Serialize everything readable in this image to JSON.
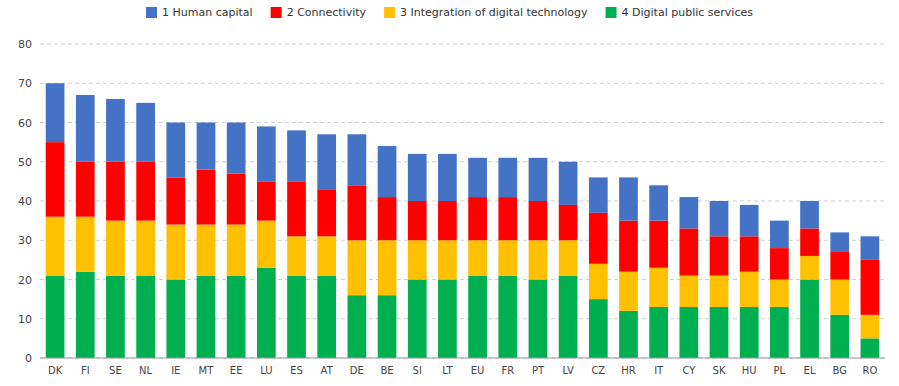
{
  "chart_data": {
    "type": "bar",
    "stacked": true,
    "categories": [
      "DK",
      "FI",
      "SE",
      "NL",
      "IE",
      "MT",
      "EE",
      "LU",
      "ES",
      "AT",
      "DE",
      "BE",
      "SI",
      "LT",
      "EU",
      "FR",
      "PT",
      "LV",
      "CZ",
      "HR",
      "IT",
      "CY",
      "SK",
      "HU",
      "PL",
      "EL",
      "BG",
      "RO"
    ],
    "series": [
      {
        "name": "4 Digital public services",
        "color": "#00b050",
        "values": [
          21,
          22,
          21,
          21,
          20,
          21,
          21,
          23,
          21,
          21,
          16,
          16,
          20,
          20,
          21,
          21,
          20,
          21,
          15,
          12,
          13,
          13,
          13,
          13,
          13,
          20,
          11,
          5
        ]
      },
      {
        "name": "3 Integration of digital technology",
        "color": "#ffc000",
        "values": [
          15,
          14,
          14,
          14,
          14,
          13,
          13,
          12,
          10,
          10,
          14,
          14,
          10,
          10,
          9,
          9,
          10,
          9,
          9,
          10,
          10,
          8,
          8,
          9,
          7,
          6,
          9,
          6
        ]
      },
      {
        "name": "2 Connectivity",
        "color": "#ff0000",
        "values": [
          19,
          14,
          15,
          15,
          12,
          14,
          13,
          10,
          14,
          12,
          14,
          11,
          10,
          10,
          11,
          11,
          10,
          9,
          13,
          13,
          12,
          12,
          10,
          9,
          8,
          7,
          7,
          14
        ]
      },
      {
        "name": "1 Human capital",
        "color": "#4472c4",
        "values": [
          15,
          17,
          16,
          15,
          14,
          12,
          13,
          14,
          13,
          14,
          13,
          13,
          12,
          12,
          10,
          10,
          11,
          11,
          9,
          11,
          9,
          8,
          9,
          8,
          7,
          7,
          5,
          6
        ]
      }
    ],
    "ylim": [
      0,
      80
    ],
    "yticks": [
      0,
      10,
      20,
      30,
      40,
      50,
      60,
      70,
      80
    ],
    "grid": true,
    "legend": "top"
  }
}
